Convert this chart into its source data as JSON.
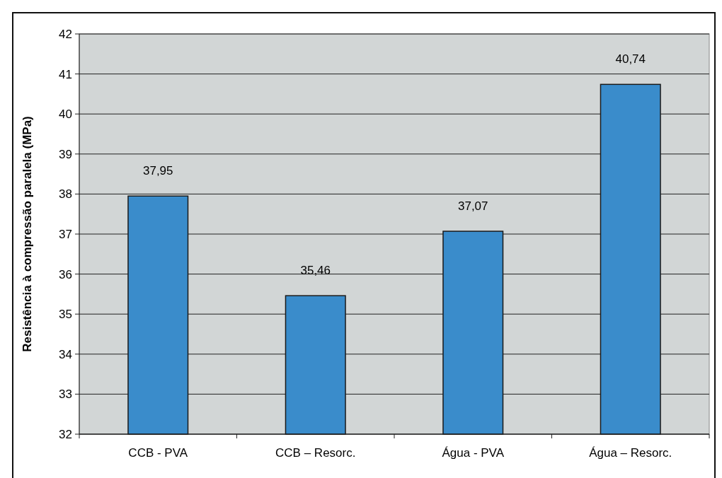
{
  "chart_data": {
    "type": "bar",
    "ylabel": "Resistência à compressão paralela (MPa)",
    "categories": [
      "CCB - PVA",
      "CCB – Resorc.",
      "Água - PVA",
      "Água – Resorc."
    ],
    "values": [
      37.95,
      35.46,
      37.07,
      40.74
    ],
    "value_labels": [
      "37,95",
      "35,46",
      "37,07",
      "40,74"
    ],
    "color": "#3a8ccb",
    "ylim": [
      32,
      42
    ],
    "yticks": [
      32,
      33,
      34,
      35,
      36,
      37,
      38,
      39,
      40,
      41,
      42
    ],
    "grid": "y"
  }
}
